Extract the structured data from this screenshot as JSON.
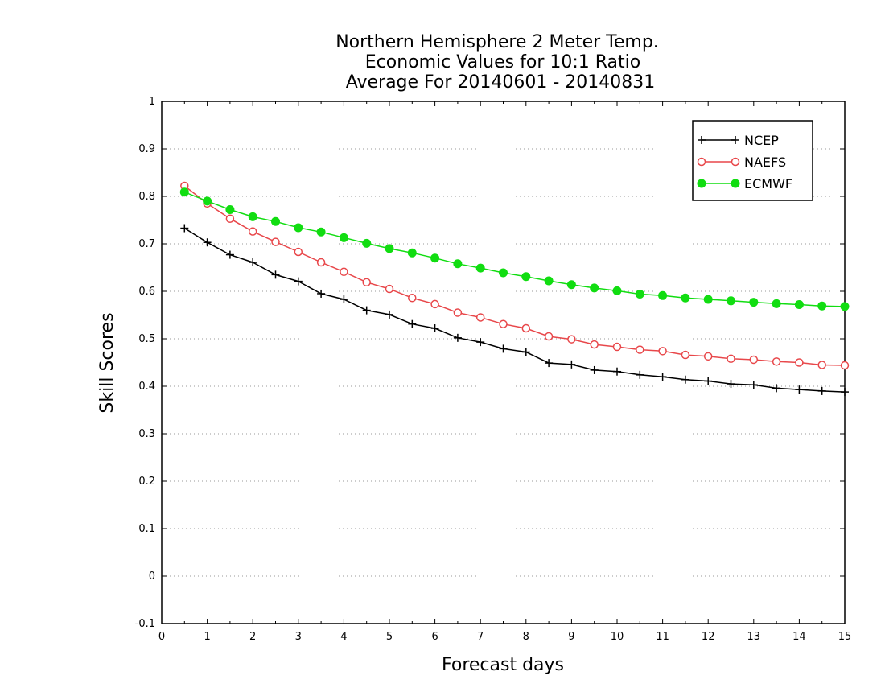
{
  "chart_data": {
    "type": "line",
    "title": [
      "Northern Hemisphere 2 Meter Temp.",
      "Economic Values for 10:1 Ratio",
      "Average For 20140601 - 20140831"
    ],
    "xlabel": "Forecast days",
    "ylabel": "Skill Scores",
    "xlim": [
      0,
      15
    ],
    "ylim": [
      -0.1,
      1
    ],
    "xticks": [
      "0",
      "1",
      "2",
      "3",
      "4",
      "5",
      "6",
      "7",
      "8",
      "9",
      "10",
      "11",
      "12",
      "13",
      "14",
      "15"
    ],
    "yticks": [
      "-0.1",
      "0",
      "0.1",
      "0.2",
      "0.3",
      "0.4",
      "0.5",
      "0.6",
      "0.7",
      "0.8",
      "0.9",
      "1"
    ],
    "grid": "horizontal dotted",
    "legend_position": "top-right",
    "x": [
      0.5,
      1,
      1.5,
      2,
      2.5,
      3,
      3.5,
      4,
      4.5,
      5,
      5.5,
      6,
      6.5,
      7,
      7.5,
      8,
      8.5,
      9,
      9.5,
      10,
      10.5,
      11,
      11.5,
      12,
      12.5,
      13,
      13.5,
      14,
      14.5,
      15
    ],
    "series": [
      {
        "name": "NCEP",
        "color": "#000000",
        "marker": "plus",
        "values": [
          0.733,
          0.703,
          0.677,
          0.661,
          0.635,
          0.621,
          0.595,
          0.583,
          0.56,
          0.551,
          0.531,
          0.522,
          0.502,
          0.493,
          0.479,
          0.472,
          0.449,
          0.446,
          0.434,
          0.431,
          0.424,
          0.42,
          0.414,
          0.411,
          0.405,
          0.403,
          0.396,
          0.393,
          0.39,
          0.388
        ]
      },
      {
        "name": "NAEFS",
        "color": "#e8474a",
        "marker": "open-circle",
        "values": [
          0.822,
          0.785,
          0.753,
          0.726,
          0.704,
          0.683,
          0.661,
          0.641,
          0.619,
          0.605,
          0.586,
          0.573,
          0.555,
          0.545,
          0.531,
          0.522,
          0.505,
          0.499,
          0.488,
          0.483,
          0.477,
          0.474,
          0.466,
          0.463,
          0.458,
          0.456,
          0.452,
          0.45,
          0.445,
          0.444
        ]
      },
      {
        "name": "ECMWF",
        "color": "#11dd11",
        "marker": "filled-circle",
        "values": [
          0.809,
          0.79,
          0.772,
          0.757,
          0.747,
          0.734,
          0.725,
          0.713,
          0.701,
          0.69,
          0.681,
          0.67,
          0.658,
          0.649,
          0.639,
          0.631,
          0.622,
          0.614,
          0.607,
          0.601,
          0.594,
          0.591,
          0.586,
          0.583,
          0.58,
          0.577,
          0.574,
          0.572,
          0.569,
          0.568
        ]
      }
    ]
  }
}
